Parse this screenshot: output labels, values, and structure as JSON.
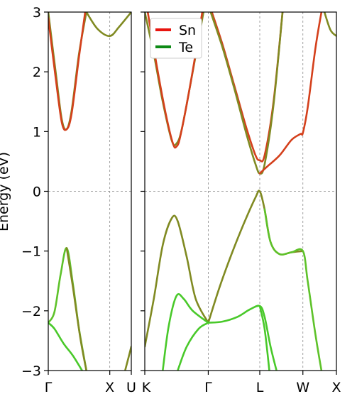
{
  "chart_data": {
    "type": "line",
    "ylabel": "Energy (eV)",
    "ylim": [
      -3,
      3
    ],
    "yticks": [
      3,
      2,
      1,
      0,
      -1,
      -2,
      -3
    ],
    "ytick_labels": [
      "3",
      "2",
      "1",
      "0",
      "−1",
      "−2",
      "−3"
    ],
    "grid": "dashed at high-symmetry points and E=0",
    "legend": {
      "placement": "top-left of right panel",
      "entries": [
        {
          "name": "Sn",
          "color": "#e8150f"
        },
        {
          "name": "Te",
          "color": "#0e8a16"
        }
      ]
    },
    "panels": [
      {
        "id": "left",
        "xticks": [
          {
            "pos": 0,
            "label": "Γ"
          },
          {
            "pos": 1,
            "label": "X"
          },
          {
            "pos": 1.35,
            "label": "U"
          }
        ],
        "xlim": [
          0,
          1.35
        ],
        "bands": [
          {
            "color": "#808a22",
            "points": [
              [
                0,
                3.0
              ],
              [
                0.12,
                2.0
              ],
              [
                0.22,
                1.2
              ],
              [
                0.3,
                1.04
              ],
              [
                0.38,
                1.35
              ],
              [
                0.5,
                2.3
              ],
              [
                0.62,
                3.0
              ]
            ]
          },
          {
            "color": "#d4401c",
            "points": [
              [
                0,
                2.9
              ],
              [
                0.12,
                1.9
              ],
              [
                0.22,
                1.15
              ],
              [
                0.3,
                1.04
              ],
              [
                0.38,
                1.3
              ],
              [
                0.5,
                2.25
              ],
              [
                0.6,
                3.0
              ]
            ]
          },
          {
            "color": "#808a22",
            "points": [
              [
                0.62,
                3.0
              ],
              [
                0.8,
                2.72
              ],
              [
                1.0,
                2.6
              ],
              [
                1.15,
                2.75
              ],
              [
                1.35,
                3.0
              ]
            ]
          },
          {
            "color": "#5ec22a",
            "points": [
              [
                0,
                -2.2
              ],
              [
                0.1,
                -2.02
              ],
              [
                0.2,
                -1.4
              ],
              [
                0.3,
                -0.95
              ],
              [
                0.4,
                -1.55
              ],
              [
                0.5,
                -2.3
              ],
              [
                0.62,
                -3.0
              ]
            ]
          },
          {
            "color": "#49c92a",
            "points": [
              [
                0,
                -2.2
              ],
              [
                0.1,
                -2.3
              ],
              [
                0.25,
                -2.55
              ],
              [
                0.4,
                -2.75
              ],
              [
                0.55,
                -3.0
              ]
            ]
          },
          {
            "color": "#808a22",
            "points": [
              [
                0.3,
                -0.95
              ],
              [
                0.4,
                -1.6
              ],
              [
                0.52,
                -2.45
              ],
              [
                0.62,
                -3.0
              ]
            ]
          },
          {
            "color": "#808a22",
            "points": [
              [
                1.25,
                -3.0
              ],
              [
                1.35,
                -2.6
              ]
            ]
          }
        ]
      },
      {
        "id": "right",
        "xticks": [
          {
            "pos": 0,
            "label": "K"
          },
          {
            "pos": 1.06,
            "label": "Γ"
          },
          {
            "pos": 1.92,
            "label": "L"
          },
          {
            "pos": 2.64,
            "label": "W"
          },
          {
            "pos": 3.2,
            "label": "X"
          }
        ],
        "xlim": [
          0,
          3.2
        ],
        "bands": [
          {
            "color": "#808a22",
            "points": [
              [
                0,
                3.0
              ],
              [
                0.15,
                2.3
              ],
              [
                0.3,
                1.5
              ],
              [
                0.45,
                0.85
              ],
              [
                0.53,
                0.8
              ],
              [
                0.62,
                1.05
              ],
              [
                0.8,
                2.0
              ],
              [
                0.98,
                3.0
              ]
            ]
          },
          {
            "color": "#d4401c",
            "points": [
              [
                0.05,
                3.0
              ],
              [
                0.2,
                2.1
              ],
              [
                0.35,
                1.3
              ],
              [
                0.47,
                0.8
              ],
              [
                0.53,
                0.75
              ],
              [
                0.6,
                0.95
              ],
              [
                0.78,
                1.9
              ],
              [
                0.96,
                3.0
              ]
            ]
          },
          {
            "color": "#d4401c",
            "points": [
              [
                1.12,
                3.0
              ],
              [
                1.3,
                2.45
              ],
              [
                1.5,
                1.75
              ],
              [
                1.7,
                1.05
              ],
              [
                1.85,
                0.6
              ],
              [
                1.92,
                0.52
              ],
              [
                2.0,
                0.6
              ],
              [
                2.15,
                1.5
              ],
              [
                2.3,
                3.0
              ]
            ]
          },
          {
            "color": "#808a22",
            "points": [
              [
                1.1,
                3.0
              ],
              [
                1.3,
                2.4
              ],
              [
                1.5,
                1.7
              ],
              [
                1.7,
                0.95
              ],
              [
                1.85,
                0.45
              ],
              [
                1.92,
                0.3
              ],
              [
                2.0,
                0.45
              ],
              [
                2.15,
                1.45
              ],
              [
                2.3,
                3.0
              ]
            ]
          },
          {
            "color": "#d4401c",
            "points": [
              [
                1.92,
                0.3
              ],
              [
                2.05,
                0.42
              ],
              [
                2.25,
                0.6
              ],
              [
                2.45,
                0.86
              ],
              [
                2.6,
                0.96
              ],
              [
                2.64,
                0.98
              ],
              [
                2.72,
                1.4
              ],
              [
                2.85,
                2.4
              ],
              [
                2.95,
                3.0
              ]
            ]
          },
          {
            "color": "#808a22",
            "points": [
              [
                3.0,
                3.0
              ],
              [
                3.1,
                2.7
              ],
              [
                3.2,
                2.6
              ]
            ]
          },
          {
            "color": "#808a22",
            "points": [
              [
                0,
                -2.6
              ],
              [
                0.15,
                -1.8
              ],
              [
                0.3,
                -0.9
              ],
              [
                0.45,
                -0.45
              ],
              [
                0.55,
                -0.5
              ],
              [
                0.7,
                -1.1
              ],
              [
                0.85,
                -1.8
              ],
              [
                1.06,
                -2.2
              ]
            ]
          },
          {
            "color": "#808a22",
            "points": [
              [
                1.06,
                -2.2
              ],
              [
                1.25,
                -1.6
              ],
              [
                1.45,
                -1.05
              ],
              [
                1.65,
                -0.55
              ],
              [
                1.85,
                -0.1
              ],
              [
                1.92,
                0.0
              ],
              [
                2.0,
                -0.3
              ],
              [
                2.1,
                -0.85
              ],
              [
                2.25,
                -1.05
              ],
              [
                2.45,
                -1.02
              ],
              [
                2.64,
                -1.0
              ]
            ]
          },
          {
            "color": "#5ec22a",
            "points": [
              [
                2.0,
                -0.3
              ],
              [
                2.1,
                -0.85
              ],
              [
                2.25,
                -1.05
              ],
              [
                2.45,
                -1.02
              ],
              [
                2.64,
                -1.0
              ],
              [
                2.72,
                -1.5
              ],
              [
                2.85,
                -2.4
              ],
              [
                2.95,
                -3.0
              ]
            ]
          },
          {
            "color": "#49c92a",
            "points": [
              [
                0.3,
                -3.0
              ],
              [
                0.4,
                -2.25
              ],
              [
                0.53,
                -1.75
              ],
              [
                0.65,
                -1.8
              ],
              [
                0.8,
                -2.0
              ],
              [
                1.06,
                -2.2
              ]
            ]
          },
          {
            "color": "#49c92a",
            "points": [
              [
                1.06,
                -2.2
              ],
              [
                1.3,
                -2.18
              ],
              [
                1.55,
                -2.1
              ],
              [
                1.75,
                -1.98
              ],
              [
                1.92,
                -1.92
              ],
              [
                2.0,
                -2.1
              ],
              [
                2.1,
                -2.6
              ],
              [
                2.2,
                -3.0
              ]
            ]
          },
          {
            "color": "#49c92a",
            "points": [
              [
                0.55,
                -3.0
              ],
              [
                0.7,
                -2.6
              ],
              [
                0.9,
                -2.3
              ],
              [
                1.06,
                -2.2
              ]
            ]
          },
          {
            "color": "#49c92a",
            "points": [
              [
                1.92,
                -1.92
              ],
              [
                2.0,
                -2.3
              ],
              [
                2.08,
                -3.0
              ]
            ]
          }
        ]
      }
    ]
  }
}
